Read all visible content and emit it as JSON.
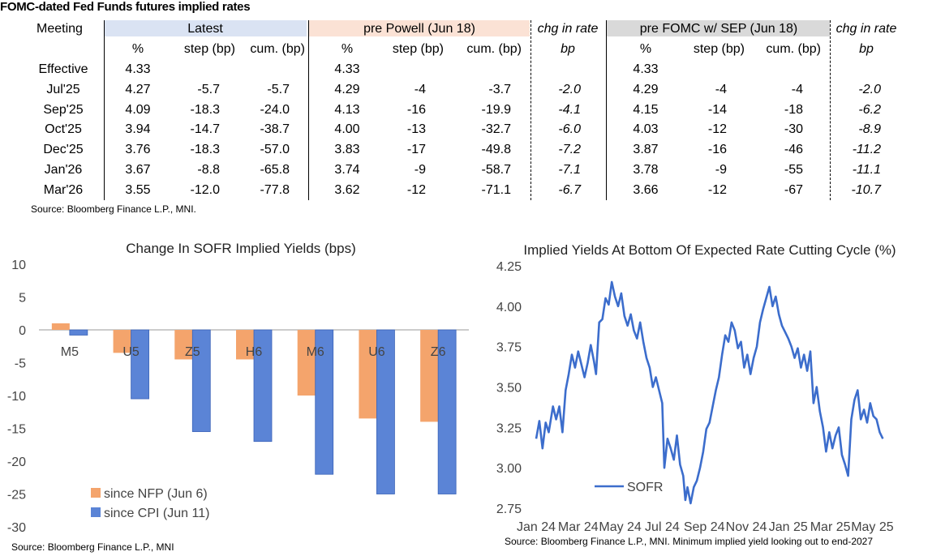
{
  "table": {
    "title": "FOMC-dated Fed Funds futures implied rates",
    "meeting_label": "Meeting",
    "groups": {
      "latest": "Latest",
      "pre_powell": "pre Powell (Jun 18)",
      "chg1": "chg in rate",
      "pre_fomc": "pre FOMC w/ SEP (Jun 18)",
      "chg2": "chg in rate"
    },
    "subheaders": {
      "pct": "%",
      "step": "step (bp)",
      "cum": "cum. (bp)",
      "bp": "bp"
    },
    "rows": [
      [
        "Effective",
        "4.33",
        "",
        "",
        "4.33",
        "",
        "",
        "",
        "4.33",
        "",
        "",
        ""
      ],
      [
        "Jul'25",
        "4.27",
        "-5.7",
        "-5.7",
        "4.29",
        "-4",
        "-3.7",
        "-2.0",
        "4.29",
        "-4",
        "-4",
        "-2.0"
      ],
      [
        "Sep'25",
        "4.09",
        "-18.3",
        "-24.0",
        "4.13",
        "-16",
        "-19.9",
        "-4.1",
        "4.15",
        "-14",
        "-18",
        "-6.2"
      ],
      [
        "Oct'25",
        "3.94",
        "-14.7",
        "-38.7",
        "4.00",
        "-13",
        "-32.7",
        "-6.0",
        "4.03",
        "-12",
        "-30",
        "-8.9"
      ],
      [
        "Dec'25",
        "3.76",
        "-18.3",
        "-57.0",
        "3.83",
        "-17",
        "-49.8",
        "-7.2",
        "3.87",
        "-16",
        "-46",
        "-11.2"
      ],
      [
        "Jan'26",
        "3.67",
        "-8.8",
        "-65.8",
        "3.74",
        "-9",
        "-58.7",
        "-7.1",
        "3.78",
        "-9",
        "-55",
        "-11.1"
      ],
      [
        "Mar'26",
        "3.55",
        "-12.0",
        "-77.8",
        "3.62",
        "-12",
        "-71.1",
        "-6.7",
        "3.66",
        "-12",
        "-67",
        "-10.7"
      ]
    ],
    "source": "Source: Bloomberg Finance L.P., MNI.",
    "colors": {
      "latest_bg": "#dae3f3",
      "pre_powell_bg": "#fbe2d5",
      "pre_fomc_bg": "#d9d9d9"
    }
  },
  "chart_data": [
    {
      "type": "bar",
      "title": "Change In SOFR Implied Yields (bps)",
      "categories": [
        "M5",
        "U5",
        "Z5",
        "H6",
        "M6",
        "U6",
        "Z6"
      ],
      "series": [
        {
          "name": "since NFP (Jun 6)",
          "color": "#f4a46c",
          "values": [
            1.0,
            -3.5,
            -4.5,
            -4.5,
            -10.0,
            -13.5,
            -14.0
          ]
        },
        {
          "name": "since CPI (Jun 11)",
          "color": "#5b84d6",
          "values": [
            -0.8,
            -10.5,
            -15.5,
            -17.0,
            -22.0,
            -25.0,
            -25.0
          ]
        }
      ],
      "ylim": [
        -30,
        10
      ],
      "yticks": [
        "10",
        "5",
        "0",
        "-5",
        "-10",
        "-15",
        "-20",
        "-25",
        "-30"
      ],
      "legend": "bottom-left",
      "source": "Source: Bloomberg Finance L.P., MNI"
    },
    {
      "type": "line",
      "title": "Implied Yields At Bottom Of Expected Rate Cutting Cycle (%)",
      "series_name": "SOFR",
      "color": "#3c6dcc",
      "ylim": [
        2.75,
        4.25
      ],
      "yticks": [
        "4.25",
        "4.00",
        "3.75",
        "3.50",
        "3.25",
        "3.00",
        "2.75"
      ],
      "xticks": [
        "Jan 24",
        "Mar 24",
        "May 24",
        "Jul 24",
        "Sep 24",
        "Nov 24",
        "Jan 25",
        "Mar 25",
        "May 25"
      ],
      "x_range_months": [
        0,
        18.3
      ],
      "keypoints": [
        [
          0.0,
          3.18
        ],
        [
          0.15,
          3.29
        ],
        [
          0.3,
          3.12
        ],
        [
          0.45,
          3.28
        ],
        [
          0.6,
          3.22
        ],
        [
          0.8,
          3.38
        ],
        [
          0.95,
          3.3
        ],
        [
          1.1,
          3.38
        ],
        [
          1.25,
          3.22
        ],
        [
          1.4,
          3.48
        ],
        [
          1.55,
          3.58
        ],
        [
          1.7,
          3.7
        ],
        [
          1.85,
          3.62
        ],
        [
          2.0,
          3.72
        ],
        [
          2.15,
          3.64
        ],
        [
          2.3,
          3.56
        ],
        [
          2.45,
          3.65
        ],
        [
          2.6,
          3.76
        ],
        [
          2.75,
          3.66
        ],
        [
          2.85,
          3.58
        ],
        [
          3.0,
          3.9
        ],
        [
          3.15,
          3.92
        ],
        [
          3.3,
          4.05
        ],
        [
          3.45,
          4.01
        ],
        [
          3.6,
          4.15
        ],
        [
          3.75,
          4.06
        ],
        [
          3.9,
          4.0
        ],
        [
          4.05,
          4.08
        ],
        [
          4.2,
          3.94
        ],
        [
          4.35,
          3.88
        ],
        [
          4.5,
          3.95
        ],
        [
          4.65,
          3.85
        ],
        [
          4.8,
          3.8
        ],
        [
          4.95,
          3.9
        ],
        [
          5.1,
          3.78
        ],
        [
          5.25,
          3.68
        ],
        [
          5.4,
          3.62
        ],
        [
          5.55,
          3.5
        ],
        [
          5.7,
          3.56
        ],
        [
          5.85,
          3.48
        ],
        [
          6.0,
          3.4
        ],
        [
          6.1,
          3.0
        ],
        [
          6.25,
          3.18
        ],
        [
          6.4,
          3.12
        ],
        [
          6.55,
          3.05
        ],
        [
          6.7,
          3.2
        ],
        [
          6.85,
          3.02
        ],
        [
          7.0,
          2.95
        ],
        [
          7.1,
          2.8
        ],
        [
          7.2,
          2.88
        ],
        [
          7.35,
          2.78
        ],
        [
          7.5,
          2.88
        ],
        [
          7.65,
          2.92
        ],
        [
          7.8,
          3.0
        ],
        [
          7.95,
          3.1
        ],
        [
          8.1,
          3.24
        ],
        [
          8.25,
          3.28
        ],
        [
          8.4,
          3.38
        ],
        [
          8.55,
          3.48
        ],
        [
          8.7,
          3.56
        ],
        [
          8.85,
          3.7
        ],
        [
          9.0,
          3.82
        ],
        [
          9.15,
          3.78
        ],
        [
          9.3,
          3.9
        ],
        [
          9.45,
          3.85
        ],
        [
          9.6,
          3.74
        ],
        [
          9.75,
          3.78
        ],
        [
          9.9,
          3.62
        ],
        [
          10.05,
          3.7
        ],
        [
          10.2,
          3.58
        ],
        [
          10.35,
          3.68
        ],
        [
          10.5,
          3.75
        ],
        [
          10.65,
          3.9
        ],
        [
          10.8,
          3.98
        ],
        [
          10.95,
          4.05
        ],
        [
          11.1,
          4.12
        ],
        [
          11.25,
          4.0
        ],
        [
          11.4,
          4.06
        ],
        [
          11.55,
          3.95
        ],
        [
          11.7,
          3.88
        ],
        [
          11.85,
          3.84
        ],
        [
          12.0,
          3.8
        ],
        [
          12.15,
          3.75
        ],
        [
          12.3,
          3.68
        ],
        [
          12.45,
          3.74
        ],
        [
          12.6,
          3.62
        ],
        [
          12.75,
          3.7
        ],
        [
          12.9,
          3.6
        ],
        [
          13.05,
          3.72
        ],
        [
          13.2,
          3.4
        ],
        [
          13.35,
          3.5
        ],
        [
          13.5,
          3.35
        ],
        [
          13.65,
          3.25
        ],
        [
          13.8,
          3.1
        ],
        [
          13.95,
          3.22
        ],
        [
          14.1,
          3.12
        ],
        [
          14.25,
          3.2
        ],
        [
          14.4,
          3.25
        ],
        [
          14.55,
          3.08
        ],
        [
          14.7,
          3.02
        ],
        [
          14.85,
          2.95
        ],
        [
          15.0,
          3.3
        ],
        [
          15.15,
          3.42
        ],
        [
          15.3,
          3.48
        ],
        [
          15.45,
          3.3
        ],
        [
          15.6,
          3.36
        ],
        [
          15.75,
          3.28
        ],
        [
          15.9,
          3.4
        ],
        [
          16.05,
          3.32
        ],
        [
          16.2,
          3.3
        ],
        [
          16.35,
          3.22
        ],
        [
          16.5,
          3.18
        ]
      ],
      "source": "Source: Bloomberg Finance L.P., MNI. Minimum implied yield looking out to end-2027"
    }
  ]
}
